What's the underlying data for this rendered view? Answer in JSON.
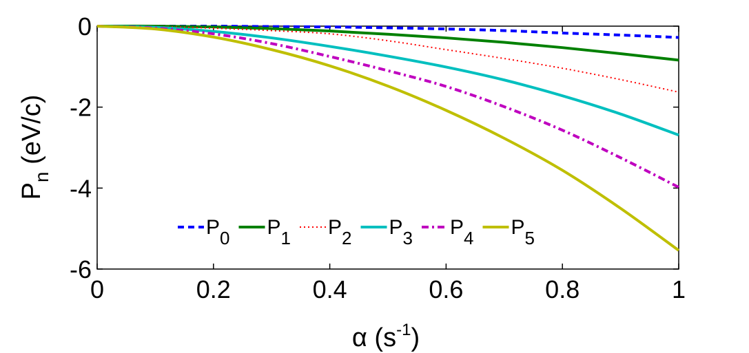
{
  "chart_data": {
    "type": "line",
    "title": "",
    "xlabel": {
      "main": "α (s",
      "sup": "-1",
      "end": ")"
    },
    "ylabel": {
      "main": "P",
      "sub": "n",
      "end": " (eV/c)"
    },
    "xlim": [
      0,
      1
    ],
    "ylim": [
      -6,
      0
    ],
    "xticks": [
      "0",
      "0.2",
      "0.4",
      "0.6",
      "0.8",
      "1"
    ],
    "xtick_values": [
      0,
      0.2,
      0.4,
      0.6,
      0.8,
      1
    ],
    "yticks": [
      "0",
      "-2",
      "-4",
      "-6"
    ],
    "ytick_values": [
      0,
      -2,
      -4,
      -6
    ],
    "grid": false,
    "legend_placement": "bottom-center, single row",
    "x": [
      0,
      0.1,
      0.2,
      0.3,
      0.4,
      0.5,
      0.6,
      0.7,
      0.8,
      0.9,
      1.0
    ],
    "series": [
      {
        "name": "P",
        "sub": "0",
        "color": "#0000ff",
        "style": "dashed",
        "values": [
          0,
          0,
          0,
          -0.01,
          -0.02,
          -0.04,
          -0.07,
          -0.11,
          -0.17,
          -0.22,
          -0.28
        ]
      },
      {
        "name": "P",
        "sub": "1",
        "color": "#008000",
        "style": "solid",
        "values": [
          0,
          0,
          -0.02,
          -0.06,
          -0.12,
          -0.2,
          -0.29,
          -0.4,
          -0.53,
          -0.68,
          -0.84
        ]
      },
      {
        "name": "P",
        "sub": "2",
        "color": "#ff0000",
        "style": "dotted",
        "values": [
          0,
          -0.01,
          -0.05,
          -0.11,
          -0.19,
          -0.36,
          -0.58,
          -0.8,
          -1.04,
          -1.32,
          -1.63
        ]
      },
      {
        "name": "P",
        "sub": "3",
        "color": "#00bfbf",
        "style": "solid",
        "values": [
          0,
          -0.03,
          -0.13,
          -0.29,
          -0.5,
          -0.74,
          -1.01,
          -1.33,
          -1.72,
          -2.17,
          -2.69
        ]
      },
      {
        "name": "P",
        "sub": "4",
        "color": "#bf00bf",
        "style": "dash-dot",
        "values": [
          0,
          -0.05,
          -0.19,
          -0.43,
          -0.75,
          -1.1,
          -1.49,
          -1.99,
          -2.57,
          -3.25,
          -3.98
        ]
      },
      {
        "name": "P",
        "sub": "5",
        "color": "#bfbf00",
        "style": "solid",
        "values": [
          0,
          -0.07,
          -0.27,
          -0.58,
          -0.98,
          -1.48,
          -2.08,
          -2.77,
          -3.56,
          -4.5,
          -5.54
        ]
      }
    ]
  }
}
